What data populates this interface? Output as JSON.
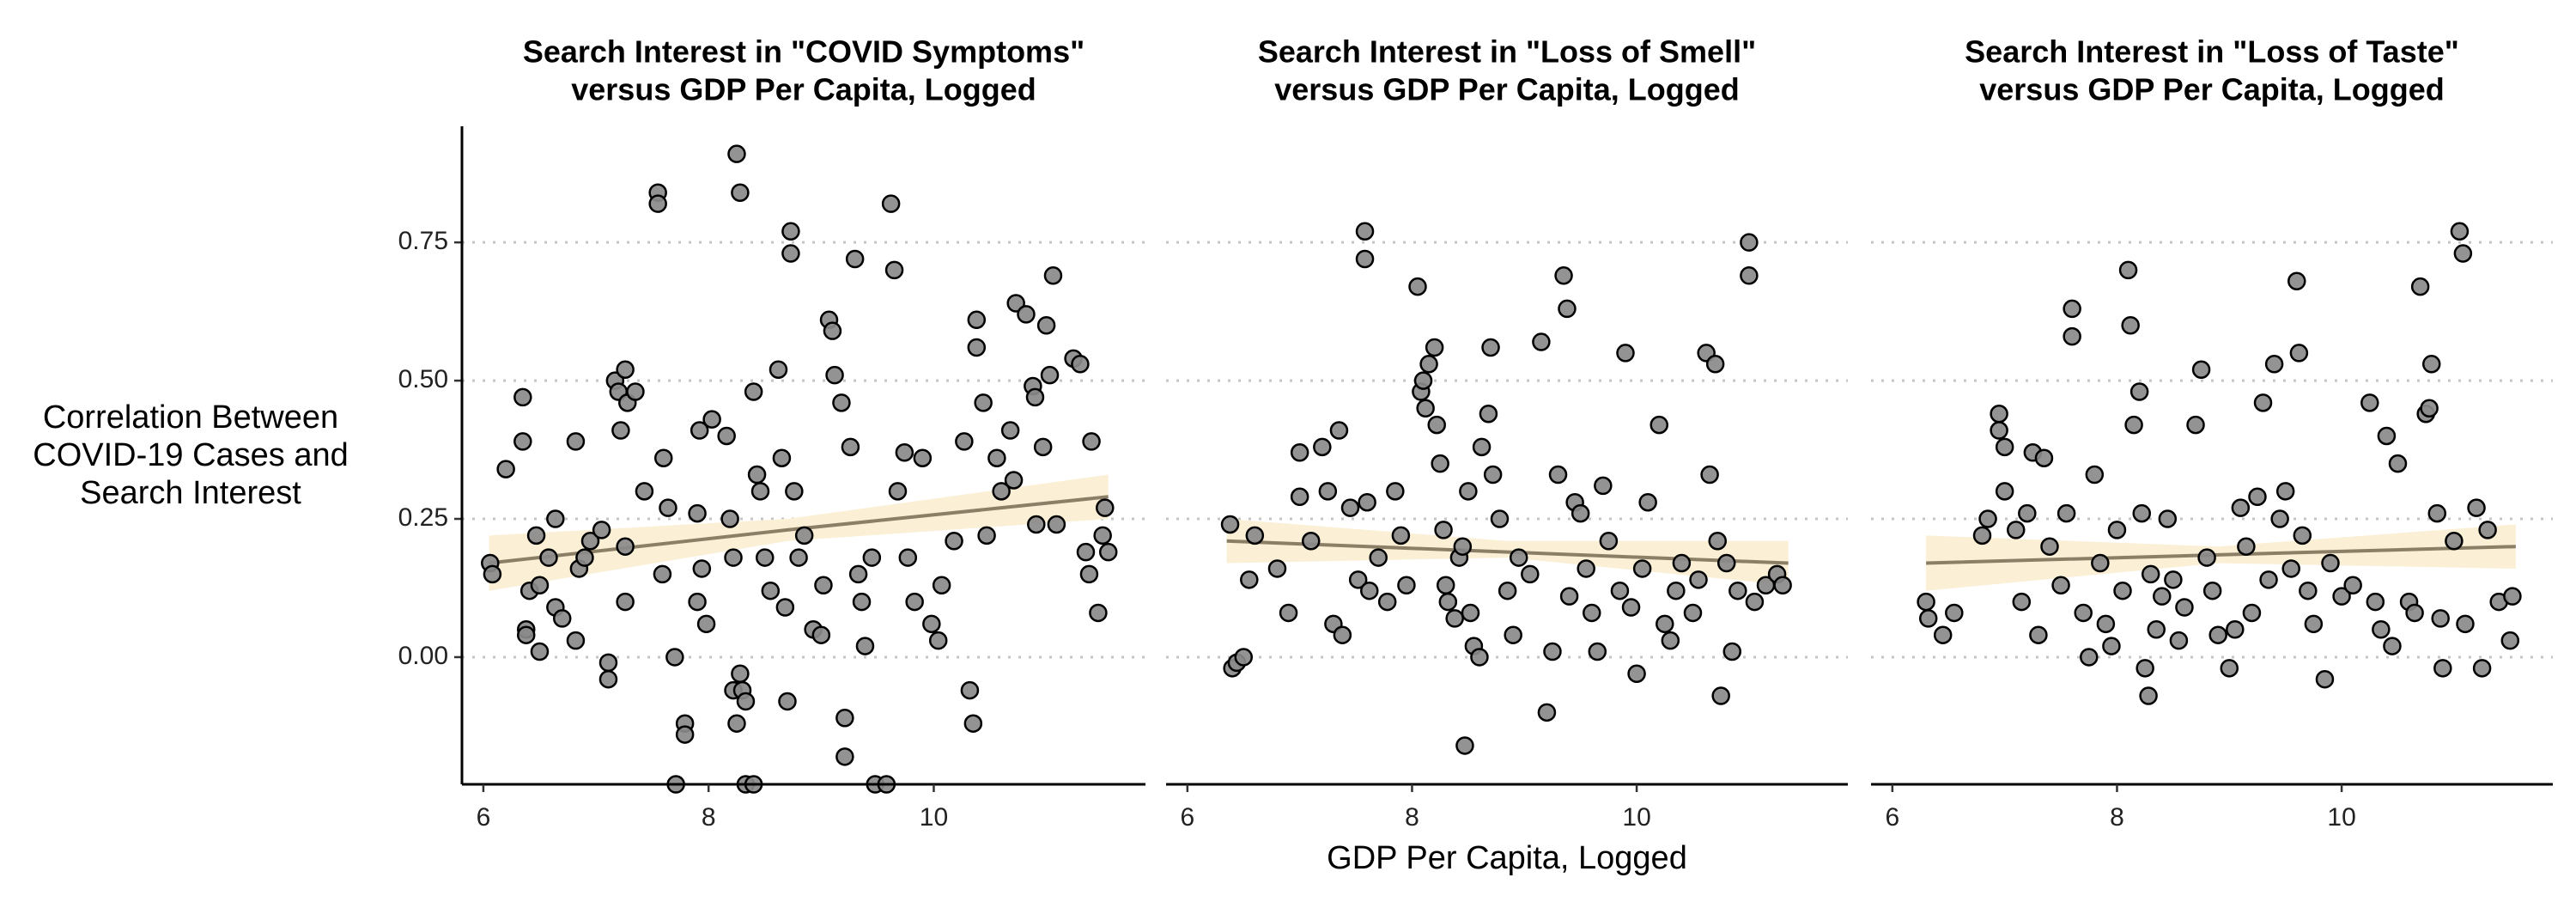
{
  "chart_data": [
    {
      "type": "scatter",
      "title": [
        "Search Interest in \"COVID Symptoms\"",
        "versus GDP Per Capita, Logged"
      ],
      "y_label": [
        "Correlation Between",
        "COVID-19 Cases and",
        "Search Interest"
      ],
      "xlim": [
        5.81,
        11.88
      ],
      "ylim": [
        -0.23,
        0.96
      ],
      "xticks": [
        6,
        8,
        10
      ],
      "yticks": [
        {
          "value": 0,
          "label": "0.00"
        },
        0.25,
        {
          "value": 0.5,
          "label": "0.50"
        },
        0.75
      ],
      "y_tick_labels": true,
      "y_axis_line": true,
      "grid": true,
      "color": "#8a8a8a",
      "trend_color": "#8c7f68",
      "band_color": "#fbefd5",
      "x": [
        6.06,
        6.08,
        6.2,
        6.35,
        6.35,
        6.38,
        6.38,
        6.41,
        6.47,
        6.5,
        6.5,
        6.58,
        6.64,
        6.64,
        6.7,
        6.82,
        6.82,
        6.85,
        6.9,
        6.95,
        7.05,
        7.11,
        7.11,
        7.17,
        7.2,
        7.22,
        7.26,
        7.28,
        7.35,
        7.26,
        7.26,
        7.43,
        7.59,
        7.6,
        7.55,
        7.55,
        7.64,
        7.7,
        7.79,
        7.79,
        7.71,
        7.9,
        7.9,
        7.92,
        7.94,
        7.98,
        8.03,
        8.16,
        8.19,
        8.22,
        8.22,
        8.25,
        8.25,
        8.28,
        8.28,
        8.3,
        8.33,
        8.33,
        8.4,
        8.4,
        8.43,
        8.46,
        8.5,
        8.55,
        8.62,
        8.65,
        8.68,
        8.7,
        8.73,
        8.73,
        8.76,
        8.8,
        8.85,
        8.93,
        9.0,
        9.02,
        9.07,
        9.1,
        9.12,
        9.18,
        9.21,
        9.21,
        9.26,
        9.3,
        9.33,
        9.36,
        9.39,
        9.45,
        9.48,
        9.58,
        9.62,
        9.65,
        9.68,
        9.74,
        9.77,
        9.83,
        9.9,
        9.98,
        10.04,
        10.07,
        10.18,
        10.27,
        10.32,
        10.35,
        10.38,
        10.38,
        10.44,
        10.47,
        10.56,
        10.6,
        10.68,
        10.71,
        10.73,
        10.82,
        10.88,
        10.9,
        10.91,
        10.97,
        11.0,
        11.03,
        11.06,
        11.09,
        11.24,
        11.3,
        11.35,
        11.38,
        11.4,
        11.46,
        11.5,
        11.52,
        11.55
      ],
      "values": [
        0.17,
        0.15,
        0.34,
        0.47,
        0.39,
        0.05,
        0.04,
        0.12,
        0.22,
        0.01,
        0.13,
        0.18,
        0.09,
        0.25,
        0.07,
        0.39,
        0.03,
        0.16,
        0.18,
        0.21,
        0.23,
        -0.01,
        -0.04,
        0.5,
        0.48,
        0.41,
        0.52,
        0.46,
        0.48,
        0.2,
        0.1,
        0.3,
        0.15,
        0.36,
        0.84,
        0.82,
        0.27,
        0.0,
        -0.12,
        -0.14,
        -0.23,
        0.1,
        0.26,
        0.41,
        0.16,
        0.06,
        0.43,
        0.4,
        0.25,
        0.18,
        -0.06,
        -0.12,
        0.91,
        0.84,
        -0.03,
        -0.06,
        -0.08,
        -0.23,
        -0.23,
        0.48,
        0.33,
        0.3,
        0.18,
        0.12,
        0.52,
        0.36,
        0.09,
        -0.08,
        0.77,
        0.73,
        0.3,
        0.18,
        0.22,
        0.05,
        0.04,
        0.13,
        0.61,
        0.59,
        0.51,
        0.46,
        -0.11,
        -0.18,
        0.38,
        0.72,
        0.15,
        0.1,
        0.02,
        0.18,
        -0.23,
        -0.23,
        0.82,
        0.7,
        0.3,
        0.37,
        0.18,
        0.1,
        0.36,
        0.06,
        0.03,
        0.13,
        0.21,
        0.39,
        -0.06,
        -0.12,
        0.61,
        0.56,
        0.46,
        0.22,
        0.36,
        0.3,
        0.41,
        0.32,
        0.64,
        0.62,
        0.49,
        0.47,
        0.24,
        0.38,
        0.6,
        0.51,
        0.69,
        0.24,
        0.54,
        0.53,
        0.19,
        0.15,
        0.39,
        0.08,
        0.22,
        0.27,
        0.19
      ],
      "trend": {
        "x": [
          6.05,
          8.7,
          11.55
        ],
        "y": [
          0.17,
          0.23,
          0.29
        ],
        "lower": [
          0.12,
          0.21,
          0.25
        ],
        "upper": [
          0.22,
          0.25,
          0.33
        ]
      }
    },
    {
      "type": "scatter",
      "title": [
        "Search Interest in \"Loss of Smell\"",
        "versus GDP Per Capita, Logged"
      ],
      "x_label": "GDP Per Capita, Logged",
      "xlim": [
        5.81,
        11.88
      ],
      "ylim": [
        -0.23,
        0.96
      ],
      "xticks": [
        6,
        8,
        10
      ],
      "yticks": [
        {
          "value": 0,
          "label": "0.00"
        },
        0.25,
        {
          "value": 0.5,
          "label": "0.50"
        },
        0.75
      ],
      "y_tick_labels": false,
      "y_axis_line": false,
      "grid": true,
      "color": "#8a8a8a",
      "trend_color": "#8c7f68",
      "band_color": "#fbefd5",
      "x": [
        6.4,
        6.44,
        6.5,
        6.38,
        6.55,
        6.6,
        6.8,
        6.9,
        7.0,
        7.0,
        7.1,
        7.2,
        7.25,
        7.3,
        7.35,
        7.38,
        7.45,
        7.52,
        7.58,
        7.58,
        7.6,
        7.62,
        7.7,
        7.78,
        7.85,
        7.9,
        7.95,
        8.05,
        8.08,
        8.1,
        8.12,
        8.15,
        8.2,
        8.22,
        8.25,
        8.28,
        8.3,
        8.32,
        8.38,
        8.42,
        8.45,
        8.47,
        8.5,
        8.52,
        8.55,
        8.6,
        8.62,
        8.68,
        8.7,
        8.72,
        8.78,
        8.85,
        8.9,
        8.95,
        9.05,
        9.15,
        9.2,
        9.25,
        9.3,
        9.35,
        9.38,
        9.4,
        9.45,
        9.5,
        9.55,
        9.6,
        9.65,
        9.7,
        9.75,
        9.85,
        9.9,
        9.95,
        10.0,
        10.05,
        10.1,
        10.2,
        10.25,
        10.3,
        10.35,
        10.4,
        10.5,
        10.55,
        10.62,
        10.65,
        10.7,
        10.72,
        10.75,
        10.8,
        10.85,
        10.9,
        11.0,
        11.0,
        11.05,
        11.15,
        11.25,
        11.3
      ],
      "values": [
        -0.02,
        -0.01,
        0.0,
        0.24,
        0.14,
        0.22,
        0.16,
        0.08,
        0.29,
        0.37,
        0.21,
        0.38,
        0.3,
        0.06,
        0.41,
        0.04,
        0.27,
        0.14,
        0.77,
        0.72,
        0.28,
        0.12,
        0.18,
        0.1,
        0.3,
        0.22,
        0.13,
        0.67,
        0.48,
        0.5,
        0.45,
        0.53,
        0.56,
        0.42,
        0.35,
        0.23,
        0.13,
        0.1,
        0.07,
        0.18,
        0.2,
        -0.16,
        0.3,
        0.08,
        0.02,
        0.0,
        0.38,
        0.44,
        0.56,
        0.33,
        0.25,
        0.12,
        0.04,
        0.18,
        0.15,
        0.57,
        -0.1,
        0.01,
        0.33,
        0.69,
        0.63,
        0.11,
        0.28,
        0.26,
        0.16,
        0.08,
        0.01,
        0.31,
        0.21,
        0.12,
        0.55,
        0.09,
        -0.03,
        0.16,
        0.28,
        0.42,
        0.06,
        0.03,
        0.12,
        0.17,
        0.08,
        0.14,
        0.55,
        0.33,
        0.53,
        0.21,
        -0.07,
        0.17,
        0.01,
        0.12,
        0.75,
        0.69,
        0.1,
        0.13,
        0.15,
        0.13
      ],
      "trend": {
        "x": [
          6.35,
          8.85,
          11.35
        ],
        "y": [
          0.21,
          0.19,
          0.17
        ],
        "lower": [
          0.17,
          0.18,
          0.13
        ],
        "upper": [
          0.25,
          0.21,
          0.21
        ]
      }
    },
    {
      "type": "scatter",
      "title": [
        "Search Interest in \"Loss of Taste\"",
        "versus GDP Per Capita, Logged"
      ],
      "xlim": [
        5.81,
        11.88
      ],
      "ylim": [
        -0.23,
        0.96
      ],
      "xticks": [
        6,
        8,
        10
      ],
      "yticks": [
        {
          "value": 0,
          "label": "0.00"
        },
        0.25,
        {
          "value": 0.5,
          "label": "0.50"
        },
        0.75
      ],
      "y_tick_labels": false,
      "y_axis_line": false,
      "grid": true,
      "color": "#8a8a8a",
      "trend_color": "#8c7f68",
      "band_color": "#fbefd5",
      "x": [
        6.3,
        6.32,
        6.45,
        6.55,
        6.8,
        6.85,
        6.95,
        6.95,
        7.0,
        7.0,
        7.1,
        7.15,
        7.2,
        7.25,
        7.3,
        7.35,
        7.4,
        7.5,
        7.55,
        7.6,
        7.6,
        7.7,
        7.75,
        7.8,
        7.85,
        7.9,
        7.95,
        8.0,
        8.05,
        8.1,
        8.12,
        8.15,
        8.2,
        8.22,
        8.25,
        8.28,
        8.3,
        8.35,
        8.4,
        8.45,
        8.5,
        8.55,
        8.6,
        8.7,
        8.75,
        8.8,
        8.85,
        8.9,
        9.0,
        9.05,
        9.1,
        9.15,
        9.2,
        9.25,
        9.3,
        9.35,
        9.4,
        9.45,
        9.5,
        9.55,
        9.6,
        9.62,
        9.65,
        9.7,
        9.75,
        9.85,
        9.9,
        10.0,
        10.1,
        10.25,
        10.3,
        10.35,
        10.4,
        10.45,
        10.5,
        10.6,
        10.65,
        10.7,
        10.75,
        10.78,
        10.8,
        10.85,
        10.88,
        10.9,
        11.0,
        11.05,
        11.08,
        11.1,
        11.2,
        11.25,
        11.3,
        11.4,
        11.5,
        11.52
      ],
      "values": [
        0.1,
        0.07,
        0.04,
        0.08,
        0.22,
        0.25,
        0.44,
        0.41,
        0.38,
        0.3,
        0.23,
        0.1,
        0.26,
        0.37,
        0.04,
        0.36,
        0.2,
        0.13,
        0.26,
        0.63,
        0.58,
        0.08,
        0.0,
        0.33,
        0.17,
        0.06,
        0.02,
        0.23,
        0.12,
        0.7,
        0.6,
        0.42,
        0.48,
        0.26,
        -0.02,
        -0.07,
        0.15,
        0.05,
        0.11,
        0.25,
        0.14,
        0.03,
        0.09,
        0.42,
        0.52,
        0.18,
        0.12,
        0.04,
        -0.02,
        0.05,
        0.27,
        0.2,
        0.08,
        0.29,
        0.46,
        0.14,
        0.53,
        0.25,
        0.3,
        0.16,
        0.68,
        0.55,
        0.22,
        0.12,
        0.06,
        -0.04,
        0.17,
        0.11,
        0.13,
        0.46,
        0.1,
        0.05,
        0.4,
        0.02,
        0.35,
        0.1,
        0.08,
        0.67,
        0.44,
        0.45,
        0.53,
        0.26,
        0.07,
        -0.02,
        0.21,
        0.77,
        0.73,
        0.06,
        0.27,
        -0.02,
        0.23,
        0.1,
        0.03,
        0.11
      ],
      "trend": {
        "x": [
          6.3,
          8.9,
          11.55
        ],
        "y": [
          0.17,
          0.185,
          0.2
        ],
        "lower": [
          0.12,
          0.17,
          0.16
        ],
        "upper": [
          0.22,
          0.2,
          0.24
        ]
      }
    }
  ]
}
